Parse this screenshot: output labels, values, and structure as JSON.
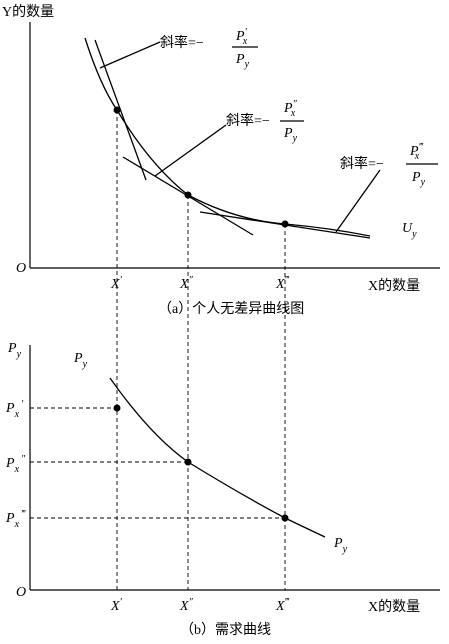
{
  "panel_a": {
    "y_axis_label": "Y的数量",
    "origin": "O",
    "x_axis_label": "X的数量",
    "caption": "（a）个人无差异曲线图",
    "curve_label": {
      "main": "U",
      "sub": "y"
    },
    "x_ticks": [
      {
        "main": "X",
        "sup": "′"
      },
      {
        "main": "X",
        "sup": "″"
      },
      {
        "main": "X",
        "sup": "‴"
      }
    ],
    "slope_labels": [
      {
        "text": "斜率=−",
        "numerator": {
          "main": "P",
          "sup": "′",
          "sub": "x"
        },
        "denominator": {
          "main": "P",
          "sub": "y"
        }
      },
      {
        "text": "斜率=−",
        "numerator": {
          "main": "P",
          "sup": "″",
          "sub": "x"
        },
        "denominator": {
          "main": "P",
          "sub": "y"
        }
      },
      {
        "text": "斜率=−",
        "numerator": {
          "main": "P",
          "sup": "‴",
          "sub": "x"
        },
        "denominator": {
          "main": "P",
          "sub": "y"
        }
      }
    ]
  },
  "panel_b": {
    "y_axis_label": {
      "main": "P",
      "sub": "y"
    },
    "origin": "O",
    "x_axis_label": "X的数量",
    "caption": "（b）需求曲线",
    "curve_label_top": {
      "main": "P",
      "sub": "y"
    },
    "curve_label_bottom": {
      "main": "P",
      "sub": "y"
    },
    "x_ticks": [
      {
        "main": "X",
        "sup": "′"
      },
      {
        "main": "X",
        "sup": "″"
      },
      {
        "main": "X",
        "sup": "‴"
      }
    ],
    "price_ticks": [
      {
        "main": "P",
        "sub": "x",
        "sup": "′"
      },
      {
        "main": "P",
        "sub": "x",
        "sup": "″"
      },
      {
        "main": "P",
        "sub": "x",
        "sup": "‴"
      }
    ]
  }
}
